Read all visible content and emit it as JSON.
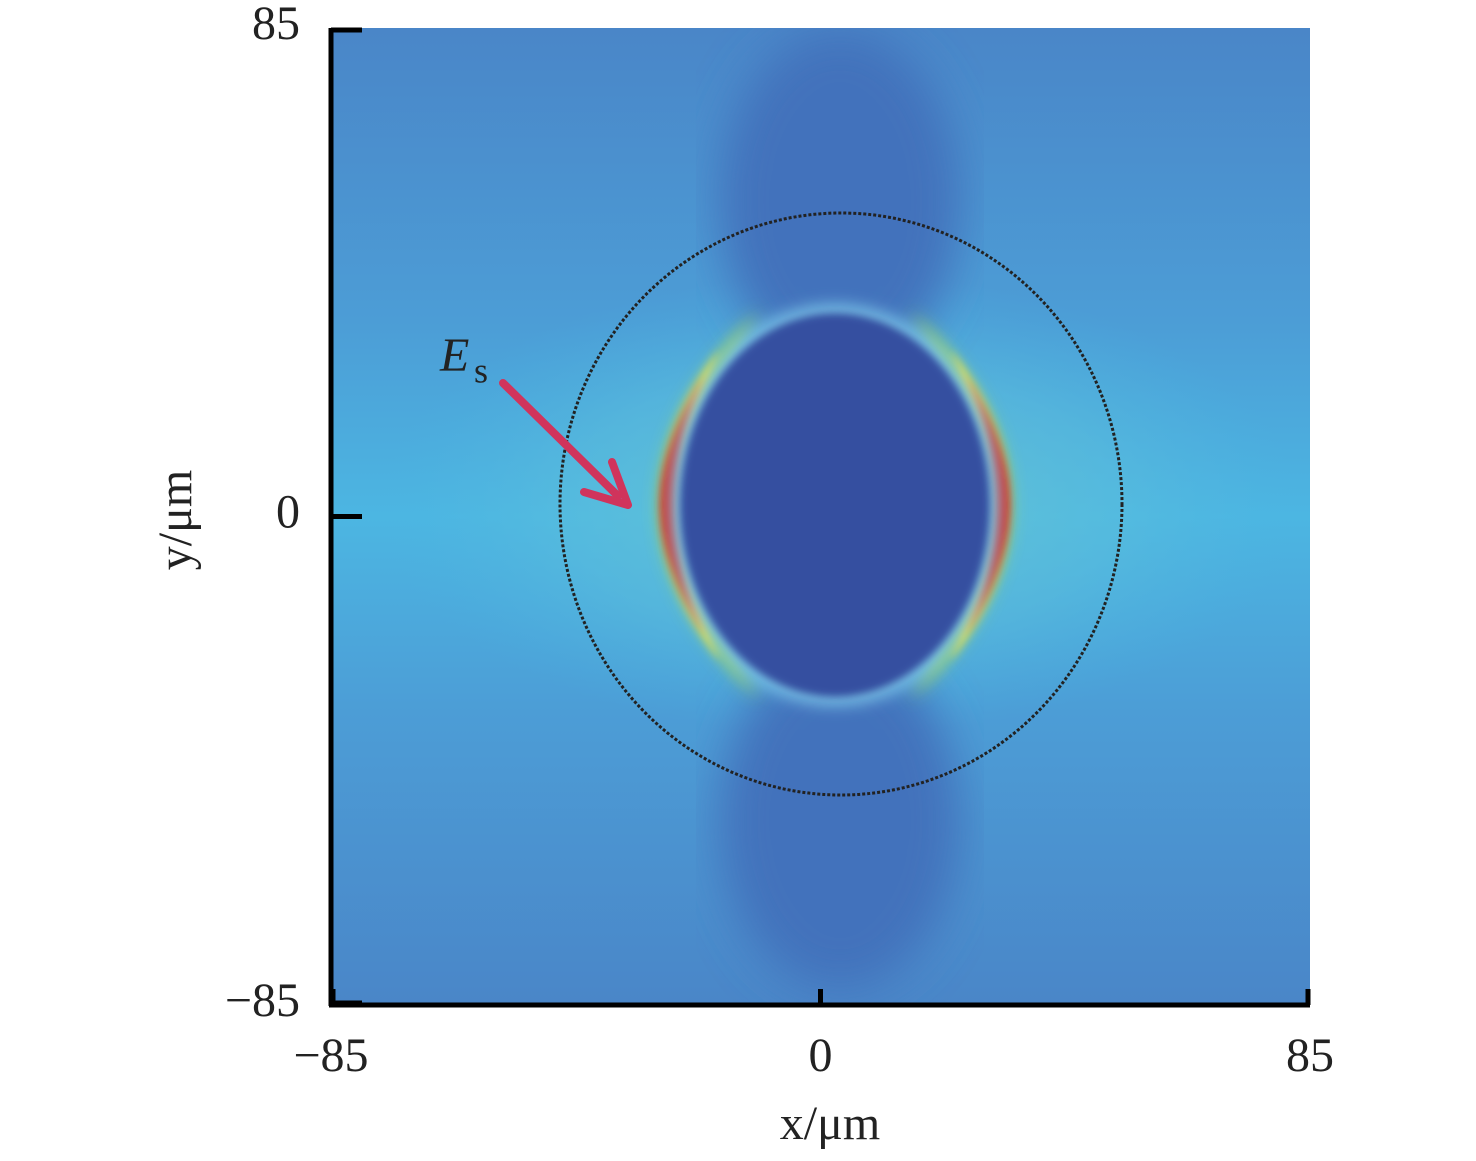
{
  "chart_data": {
    "type": "heatmap",
    "xlabel": "x/μm",
    "ylabel": "y/μm",
    "annotation": {
      "text": "E",
      "subscript": "s"
    },
    "xlim": [
      -85,
      85
    ],
    "ylim": [
      -85,
      85
    ],
    "xticks": [
      {
        "value": -85,
        "label": "−85"
      },
      0,
      85
    ],
    "yticks": [
      {
        "value": -85,
        "label": "−85"
      },
      0,
      85
    ],
    "arrow_color": "#d0345c"
  }
}
